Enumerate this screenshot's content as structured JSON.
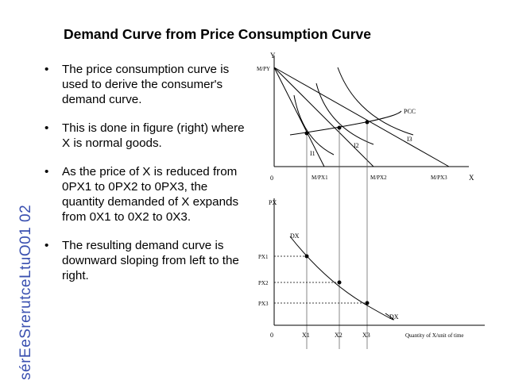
{
  "side_label": "sérEeSrerutceLtuO01 02",
  "title": "Demand Curve from Price Consumption Curve",
  "bullets": [
    "The price consumption curve is used to derive the consumer's demand curve.",
    "This is done in figure (right) where X is normal goods.",
    "As the price of X is reduced from 0PX1 to 0PX2 to 0PX3, the quantity demanded of X expands from 0X1 to 0X2 to 0X3.",
    "The resulting demand curve is downward sloping from left to the right."
  ],
  "bullet_symbol": "•",
  "figure": {
    "top": {
      "y_axis": "Y",
      "x_axis": "X",
      "origin": "0",
      "budget_intercept": "M/PY",
      "x_intercepts": [
        "M/PX1",
        "M/PX2",
        "M/PX3"
      ],
      "curve_labels": [
        "PCC",
        "I1",
        "I2",
        "I3"
      ]
    },
    "bottom": {
      "y_axis": "PX",
      "origin": "0",
      "price_labels": [
        "PX1",
        "PX2",
        "PX3"
      ],
      "quantity_labels": [
        "X1",
        "X2",
        "X3"
      ],
      "curve_label_top": "DX",
      "curve_label_bottom": "DX",
      "x_axis_label": "Quantity of X/unit of time"
    }
  }
}
